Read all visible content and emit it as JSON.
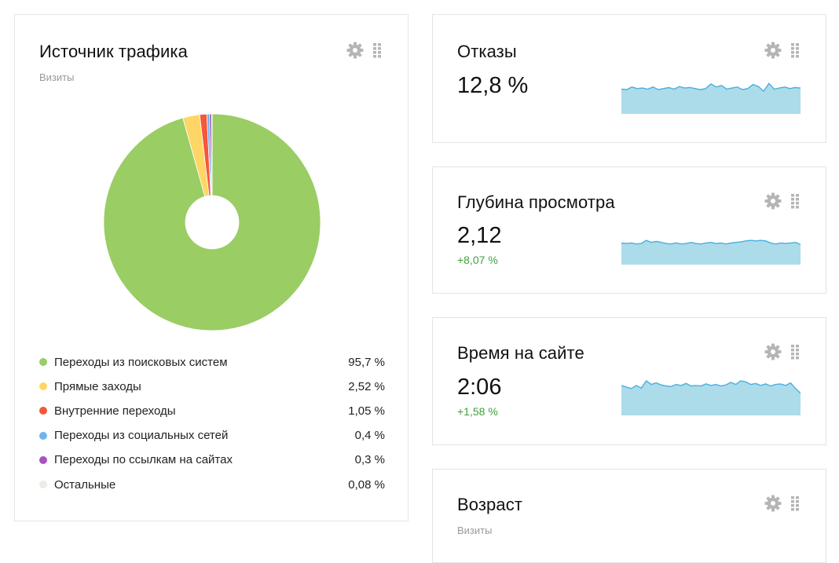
{
  "traffic": {
    "title": "Источник трафика",
    "subtitle": "Визиты",
    "legend": [
      {
        "label": "Переходы из поисковых систем",
        "value": "95,7 %",
        "share": 95.7,
        "color": "#9acd64"
      },
      {
        "label": "Прямые заходы",
        "value": "2,52 %",
        "share": 2.52,
        "color": "#ffd666"
      },
      {
        "label": "Внутренние переходы",
        "value": "1,05 %",
        "share": 1.05,
        "color": "#f5573b"
      },
      {
        "label": "Переходы из социальных сетей",
        "value": "0,4 %",
        "share": 0.4,
        "color": "#6cb4ef"
      },
      {
        "label": "Переходы по ссылкам на сайтах",
        "value": "0,3 %",
        "share": 0.3,
        "color": "#a653be"
      },
      {
        "label": "Остальные",
        "value": "0,08 %",
        "share": 0.08,
        "color": "#ecece6"
      }
    ]
  },
  "bounces": {
    "title": "Отказы",
    "value": "12,8 %",
    "trend": [
      48,
      47,
      52,
      49,
      50,
      48,
      52,
      47,
      49,
      51,
      48,
      53,
      50,
      51,
      49,
      47,
      49,
      58,
      52,
      55,
      48,
      50,
      52,
      47,
      49,
      57,
      53,
      44,
      59,
      48,
      50,
      52,
      49,
      51,
      50
    ]
  },
  "depth": {
    "title": "Глубина просмотра",
    "value": "2,12",
    "delta": "+8,07 %",
    "trend": [
      42,
      41,
      42,
      40,
      41,
      47,
      43,
      45,
      43,
      41,
      40,
      42,
      40,
      41,
      43,
      41,
      40,
      42,
      43,
      41,
      42,
      40,
      42,
      43,
      44,
      46,
      47,
      46,
      47,
      46,
      42,
      40,
      42,
      41,
      42,
      43,
      39
    ]
  },
  "time_on_site": {
    "title": "Время на сайте",
    "value": "2:06",
    "delta": "+1,58 %",
    "trend": [
      58,
      55,
      52,
      58,
      53,
      67,
      60,
      63,
      59,
      57,
      56,
      60,
      58,
      62,
      57,
      58,
      57,
      61,
      58,
      60,
      57,
      59,
      64,
      60,
      67,
      65,
      60,
      62,
      58,
      61,
      57,
      60,
      61,
      58,
      63,
      52,
      43
    ]
  },
  "age": {
    "title": "Возраст",
    "subtitle": "Визиты"
  },
  "icons": {
    "settings": "gear-icon",
    "drag": "drag-handle-icon"
  },
  "colors": {
    "sparkline_fill": "#acdcea",
    "sparkline_line": "#4aaedf",
    "positive_delta": "#3fa03f"
  }
}
